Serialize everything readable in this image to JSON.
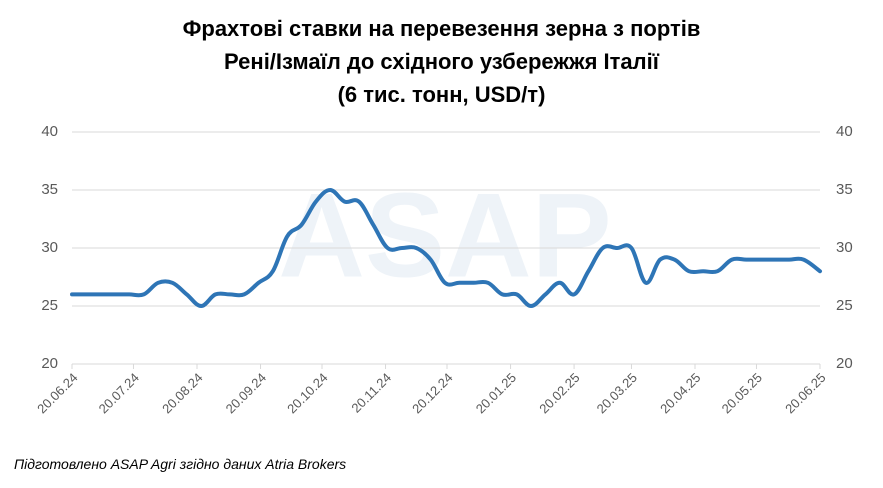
{
  "chart_data": {
    "type": "line",
    "title": "Фрахтові ставки на перевезення зерна з портів\nРені/Ізмаїл до східного узбережжя Італії\n(6 тис. тонн, USD/т)",
    "watermark": "ASAP",
    "source": "Підготовлено ASAP Agri згідно даних Atria Brokers",
    "x": [
      "2024-06-20",
      "2024-06-27",
      "2024-07-04",
      "2024-07-11",
      "2024-07-18",
      "2024-07-25",
      "2024-08-01",
      "2024-08-08",
      "2024-08-15",
      "2024-08-22",
      "2024-08-29",
      "2024-09-05",
      "2024-09-12",
      "2024-09-19",
      "2024-09-26",
      "2024-10-03",
      "2024-10-10",
      "2024-10-17",
      "2024-10-24",
      "2024-10-31",
      "2024-11-07",
      "2024-11-14",
      "2024-11-21",
      "2024-11-28",
      "2024-12-05",
      "2024-12-12",
      "2024-12-19",
      "2024-12-26",
      "2025-01-02",
      "2025-01-09",
      "2025-01-16",
      "2025-01-23",
      "2025-01-30",
      "2025-02-06",
      "2025-02-13",
      "2025-02-20",
      "2025-02-27",
      "2025-03-06",
      "2025-03-13",
      "2025-03-20",
      "2025-03-27",
      "2025-04-03",
      "2025-04-10",
      "2025-04-17",
      "2025-04-24",
      "2025-05-01",
      "2025-05-08",
      "2025-05-15",
      "2025-05-22",
      "2025-05-29",
      "2025-06-05",
      "2025-06-12",
      "2025-06-20"
    ],
    "series": [
      {
        "name": "USD/т",
        "color": "#2e75b6",
        "values": [
          26,
          26,
          26,
          26,
          26,
          26,
          27,
          27,
          26,
          25,
          26,
          26,
          26,
          27,
          28,
          31,
          32,
          34,
          35,
          34,
          34,
          32,
          30,
          30,
          30,
          29,
          27,
          27,
          27,
          27,
          26,
          26,
          25,
          26,
          27,
          26,
          28,
          30,
          30,
          30,
          27,
          29,
          29,
          28,
          28,
          28,
          29,
          29,
          29,
          29,
          29,
          29,
          28
        ]
      }
    ],
    "xlim": [
      "2024-06-20",
      "2025-06-20"
    ],
    "xticks": [
      {
        "value": "2024-06-20",
        "label": "20.06.24"
      },
      {
        "value": "2024-07-20",
        "label": "20.07.24"
      },
      {
        "value": "2024-08-20",
        "label": "20.08.24"
      },
      {
        "value": "2024-09-20",
        "label": "20.09.24"
      },
      {
        "value": "2024-10-20",
        "label": "20.10.24"
      },
      {
        "value": "2024-11-20",
        "label": "20.11.24"
      },
      {
        "value": "2024-12-20",
        "label": "20.12.24"
      },
      {
        "value": "2025-01-20",
        "label": "20.01.25"
      },
      {
        "value": "2025-02-20",
        "label": "20.02.25"
      },
      {
        "value": "2025-03-20",
        "label": "20.03.25"
      },
      {
        "value": "2025-04-20",
        "label": "20.04.25"
      },
      {
        "value": "2025-05-20",
        "label": "20.05.25"
      },
      {
        "value": "2025-06-20",
        "label": "20.06.25"
      }
    ],
    "ylim": [
      20,
      40
    ],
    "yticks": [
      20,
      25,
      30,
      35,
      40
    ],
    "y2lim": [
      20,
      40
    ],
    "y2ticks": [
      20,
      25,
      30,
      35,
      40
    ],
    "grid": true
  }
}
